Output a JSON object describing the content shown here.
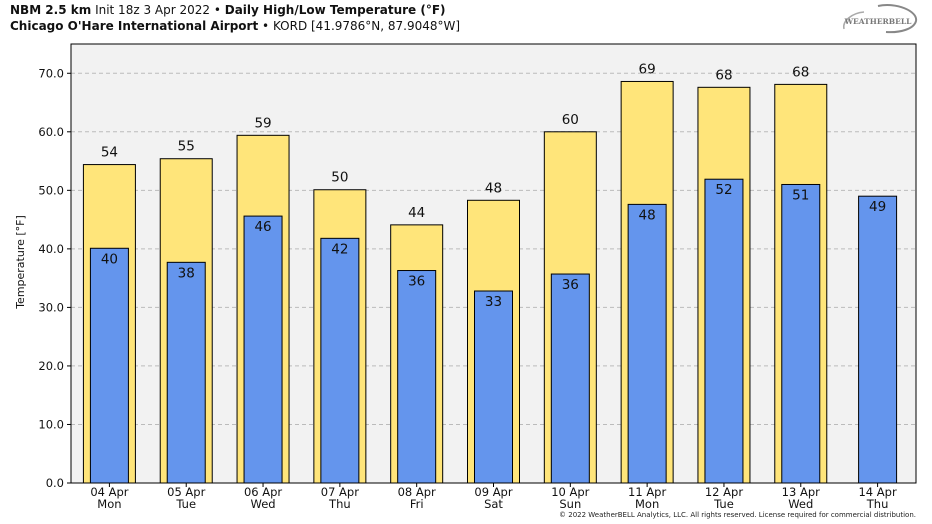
{
  "header": {
    "model": "NBM 2.5 km",
    "init": "Init 18z 3 Apr 2022",
    "bullet": "•",
    "product": "Daily High/Low Temperature (°F)",
    "station_name": "Chicago O'Hare International Airport",
    "station_info": "KORD [41.9786°N, 87.9048°W]"
  },
  "logo": {
    "text": "WEATHERBELL"
  },
  "copyright": "© 2022 WeatherBELL Analytics, LLC. All rights reserved. License required for commercial distribution.",
  "colors": {
    "high_bar": "#FFE57A",
    "low_bar": "#6495ED",
    "plot_bg": "#F2F2F2",
    "grid": "#BBBBBB"
  },
  "chart_data": {
    "type": "bar",
    "title": "Daily High/Low Temperature (°F)",
    "xlabel": "",
    "ylabel": "Temperature [°F]",
    "ylim": [
      0,
      75
    ],
    "yticks": [
      "0.0",
      "10.0",
      "20.0",
      "30.0",
      "40.0",
      "50.0",
      "60.0",
      "70.0"
    ],
    "grid": true,
    "categories": [
      {
        "date": "04 Apr",
        "day": "Mon"
      },
      {
        "date": "05 Apr",
        "day": "Tue"
      },
      {
        "date": "06 Apr",
        "day": "Wed"
      },
      {
        "date": "07 Apr",
        "day": "Thu"
      },
      {
        "date": "08 Apr",
        "day": "Fri"
      },
      {
        "date": "09 Apr",
        "day": "Sat"
      },
      {
        "date": "10 Apr",
        "day": "Sun"
      },
      {
        "date": "11 Apr",
        "day": "Mon"
      },
      {
        "date": "12 Apr",
        "day": "Tue"
      },
      {
        "date": "13 Apr",
        "day": "Wed"
      },
      {
        "date": "14 Apr",
        "day": "Thu"
      }
    ],
    "series": [
      {
        "name": "High",
        "values": [
          54.4,
          55.4,
          59.4,
          50.1,
          44.1,
          48.3,
          60.0,
          68.6,
          67.6,
          68.1,
          null
        ],
        "labels": [
          "54",
          "55",
          "59",
          "50",
          "44",
          "48",
          "60",
          "69",
          "68",
          "68",
          ""
        ]
      },
      {
        "name": "Low",
        "values": [
          40.1,
          37.7,
          45.6,
          41.8,
          36.3,
          32.8,
          35.7,
          47.6,
          51.9,
          51.0,
          49.0
        ],
        "labels": [
          "40",
          "38",
          "46",
          "42",
          "36",
          "33",
          "36",
          "48",
          "52",
          "51",
          "49"
        ]
      }
    ]
  }
}
